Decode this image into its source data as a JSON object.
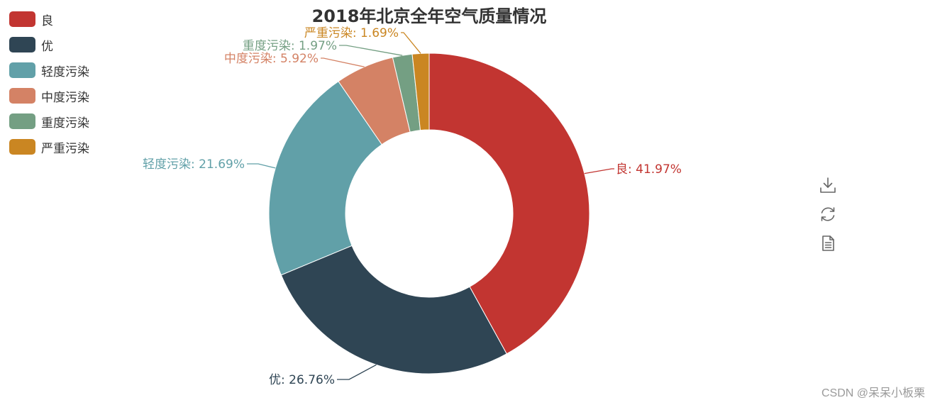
{
  "chart_data": {
    "type": "pie",
    "title": "2018年北京全年空气质量情况",
    "donut": true,
    "legend_position": "top-left",
    "slices": [
      {
        "name": "良",
        "percent": 41.97,
        "label": "良: 41.97%",
        "color": "#c23531"
      },
      {
        "name": "优",
        "percent": 26.76,
        "label": "优: 26.76%",
        "color": "#2f4554"
      },
      {
        "name": "轻度污染",
        "percent": 21.69,
        "label": "轻度污染: 21.69%",
        "color": "#61a0a8"
      },
      {
        "name": "中度污染",
        "percent": 5.92,
        "label": "中度污染: 5.92%",
        "color": "#d48265"
      },
      {
        "name": "重度污染",
        "percent": 1.97,
        "label": "重度污染: 1.97%",
        "color": "#749f83"
      },
      {
        "name": "严重污染",
        "percent": 1.69,
        "label": "严重污染: 1.69%",
        "color": "#ca8622"
      }
    ]
  },
  "toolbox": {
    "icons": [
      "download-icon",
      "refresh-icon",
      "data-view-icon"
    ]
  },
  "watermark": "CSDN @呆呆小板栗"
}
